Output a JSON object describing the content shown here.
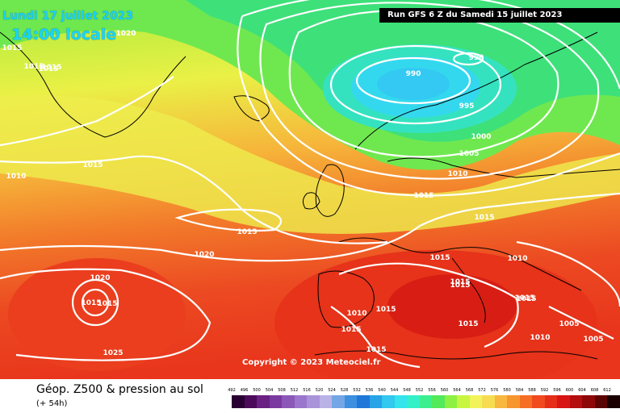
{
  "header": {
    "date_label": "Lundi 17 juillet 2023",
    "time_label": "14:00 locale",
    "run_label": "Run GFS 6 Z du Samedi 15 juillet 2023"
  },
  "copyright": "Copyright © 2023 Meteociel.fr",
  "legend": {
    "title": "Géop. Z500 & pression au sol",
    "subtitle": "(+ 54h)",
    "ticks": [
      "492",
      "496",
      "500",
      "504",
      "508",
      "512",
      "516",
      "520",
      "524",
      "528",
      "532",
      "536",
      "540",
      "544",
      "548",
      "552",
      "556",
      "560",
      "564",
      "568",
      "572",
      "576",
      "580",
      "584",
      "588",
      "592",
      "596",
      "600",
      "604",
      "608",
      "612"
    ],
    "colors": [
      "#2a0033",
      "#4b0b5a",
      "#6a1f82",
      "#7a3aa0",
      "#8b58b8",
      "#9a77cc",
      "#a994da",
      "#b9b2e6",
      "#74a6e6",
      "#3d8fe0",
      "#1f78d8",
      "#27a3e8",
      "#33c8ee",
      "#35e4ec",
      "#33f0c8",
      "#3cef8e",
      "#52ea5a",
      "#8ef043",
      "#c8f53f",
      "#f2f35a",
      "#f6dc50",
      "#f8b73e",
      "#f7952f",
      "#f56f24",
      "#f04a1e",
      "#e62d18",
      "#d81414",
      "#b40e0e",
      "#8e0808",
      "#5a0404",
      "#1a0000"
    ]
  },
  "pressure_labels": [
    {
      "text": "990"
    },
    {
      "text": "990"
    },
    {
      "text": "995"
    },
    {
      "text": "1000"
    },
    {
      "text": "1005"
    },
    {
      "text": "1010"
    },
    {
      "text": "1015"
    },
    {
      "text": "1015"
    },
    {
      "text": "1015"
    },
    {
      "text": "1015"
    },
    {
      "text": "1015"
    },
    {
      "text": "1015"
    },
    {
      "text": "1020"
    },
    {
      "text": "1020"
    },
    {
      "text": "1015"
    },
    {
      "text": "1015"
    },
    {
      "text": "1025"
    },
    {
      "text": "1010"
    },
    {
      "text": "1015"
    },
    {
      "text": "1015"
    },
    {
      "text": "1015"
    },
    {
      "text": "1010"
    },
    {
      "text": "1015"
    },
    {
      "text": "1015"
    },
    {
      "text": "1005"
    },
    {
      "text": "1010"
    },
    {
      "text": "1005"
    },
    {
      "text": "1015"
    },
    {
      "text": "1015"
    },
    {
      "text": "1015"
    },
    {
      "text": "1015"
    },
    {
      "text": "1015"
    },
    {
      "text": "1020"
    },
    {
      "text": "1015"
    },
    {
      "text": "1010"
    }
  ]
}
